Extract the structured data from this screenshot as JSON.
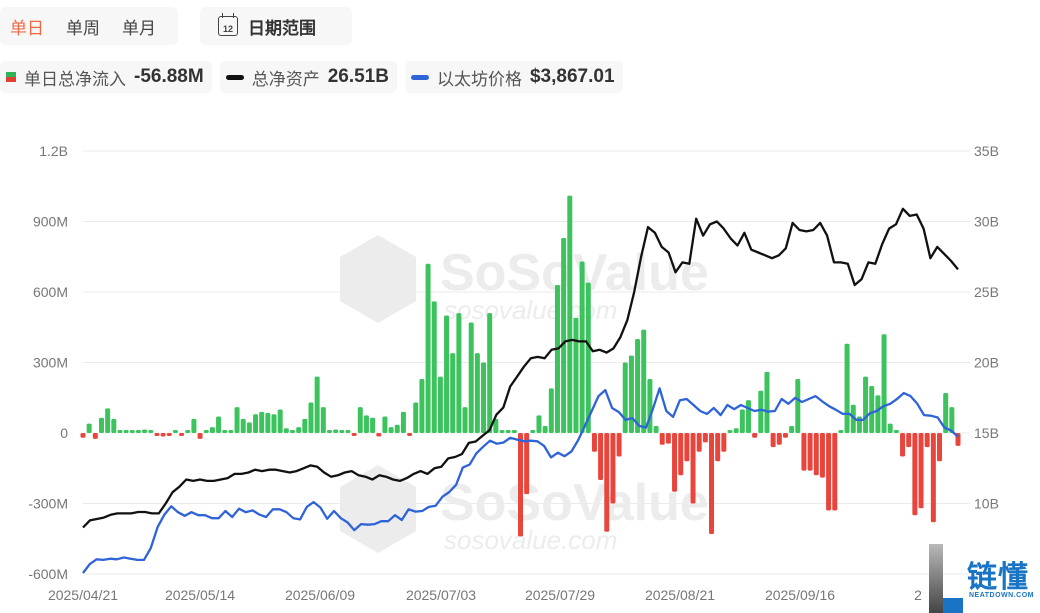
{
  "tabs": [
    {
      "label": "单日",
      "active": true
    },
    {
      "label": "单周",
      "active": false
    },
    {
      "label": "单月",
      "active": false
    }
  ],
  "date_range": {
    "icon": "calendar-icon",
    "icon_text": "12",
    "label": "日期范围"
  },
  "legend": [
    {
      "name": "单日总净流入",
      "value": "-56.88M",
      "swatch": "bar-swatch"
    },
    {
      "name": "总净资产",
      "value": "26.51B",
      "swatch": "line-swatch",
      "color": "#111111"
    },
    {
      "name": "以太坊价格",
      "value": "$3,867.01",
      "swatch": "line-swatch",
      "color": "#2f63d8"
    }
  ],
  "colors": {
    "inflow": "#3cc35e",
    "outflow": "#e8453c",
    "total_assets": "#111111",
    "eth_price": "#2f63d8",
    "grid": "#ebebeb",
    "active_tab": "#ee6a43"
  },
  "watermark": {
    "brand": "SoSoValue",
    "url": "sosovalue.com"
  },
  "logo": {
    "brand": "链懂",
    "sub": "NEATDOWN.COM"
  },
  "chart_data": {
    "type": "bar+line",
    "title": "",
    "x_tick_labels": [
      "2025/04/21",
      "2025/05/14",
      "2025/06/09",
      "2025/07/03",
      "2025/07/29",
      "2025/08/21",
      "2025/09/16",
      "2"
    ],
    "left_axis": {
      "label": "单日总净流入",
      "ticks": [
        "1.2B",
        "900M",
        "600M",
        "300M",
        "0",
        "-300M",
        "-600M"
      ],
      "range": [
        -600,
        1200
      ],
      "unit": "M"
    },
    "right_axis": {
      "label": "总净资产",
      "ticks": [
        "35B",
        "30B",
        "25B",
        "20B",
        "15B",
        "10B"
      ],
      "range": [
        8,
        35
      ],
      "unit": "B"
    },
    "grid": true,
    "legend_position": "top-left",
    "series": [
      {
        "name": "单日总净流入",
        "type": "bar",
        "unit": "M",
        "values": [
          -20,
          40,
          -25,
          65,
          105,
          60,
          5,
          0,
          5,
          0,
          15,
          0,
          -10,
          -15,
          -10,
          10,
          -5,
          10,
          60,
          -25,
          10,
          25,
          70,
          0,
          0,
          110,
          60,
          45,
          80,
          90,
          85,
          80,
          100,
          20,
          5,
          25,
          60,
          130,
          240,
          110,
          0,
          15,
          10,
          10,
          -5,
          110,
          75,
          65,
          -15,
          70,
          25,
          35,
          90,
          -5,
          130,
          230,
          720,
          560,
          240,
          500,
          340,
          510,
          110,
          470,
          340,
          300,
          510,
          60,
          0,
          5,
          0,
          -440,
          -260,
          0,
          75,
          30,
          190,
          630,
          830,
          1010,
          490,
          730,
          640,
          -80,
          -200,
          -420,
          -300,
          -100,
          300,
          330,
          400,
          440,
          230,
          30,
          -50,
          -45,
          -250,
          -180,
          -120,
          -300,
          -80,
          -40,
          -430,
          -120,
          -80,
          10,
          20,
          100,
          140,
          -20,
          180,
          260,
          -60,
          -50,
          -20,
          30,
          230,
          -160,
          -160,
          -180,
          -190,
          -330,
          -330,
          10,
          380,
          120,
          70,
          240,
          200,
          160,
          420,
          40,
          0,
          -100,
          -60,
          -350,
          -320,
          -60,
          -380,
          -120,
          170,
          110,
          -55
        ]
      },
      {
        "name": "总净资产",
        "type": "line",
        "unit": "B",
        "values": [
          8.3,
          8.8,
          8.9,
          9.0,
          9.2,
          9.3,
          9.3,
          9.3,
          9.4,
          9.4,
          9.3,
          9.3,
          10.0,
          10.8,
          11.2,
          11.7,
          11.6,
          11.7,
          11.6,
          11.6,
          11.7,
          11.8,
          12.1,
          12.1,
          12.2,
          12.4,
          12.3,
          12.4,
          12.4,
          12.3,
          12.2,
          12.3,
          12.5,
          12.7,
          12.6,
          12.2,
          11.9,
          12.0,
          12.2,
          12.3,
          12.0,
          11.9,
          11.7,
          12.0,
          11.9,
          11.7,
          11.6,
          11.8,
          12.1,
          12.3,
          12.1,
          12.5,
          12.6,
          13.2,
          13.3,
          13.5,
          14.3,
          14.4,
          14.8,
          15.2,
          16.3,
          16.8,
          18.3,
          19.0,
          19.7,
          20.3,
          20.4,
          20.3,
          20.9,
          21.0,
          21.5,
          21.6,
          21.5,
          21.5,
          20.8,
          20.9,
          20.7,
          21.0,
          21.8,
          23.0,
          25.0,
          27.5,
          29.6,
          29.2,
          28.2,
          27.8,
          26.4,
          27.1,
          27.0,
          30.2,
          29.0,
          29.8,
          30.0,
          29.5,
          28.8,
          28.3,
          29.2,
          28.0,
          27.8,
          27.6,
          27.4,
          27.6,
          28.1,
          29.9,
          29.4,
          29.3,
          29.4,
          29.9,
          29.0,
          27.1,
          27.1,
          27.0,
          25.5,
          25.9,
          27.1,
          27.0,
          28.4,
          29.5,
          29.8,
          30.9,
          30.4,
          30.5,
          29.5,
          27.4,
          28.2,
          27.7,
          27.2,
          26.6
        ]
      },
      {
        "name": "以太坊价格",
        "type": "line",
        "unit": "USD",
        "values": [
          1580,
          1730,
          1810,
          1800,
          1820,
          1810,
          1840,
          1820,
          1800,
          1800,
          2000,
          2350,
          2560,
          2700,
          2600,
          2540,
          2600,
          2550,
          2550,
          2500,
          2500,
          2620,
          2520,
          2660,
          2600,
          2630,
          2560,
          2520,
          2650,
          2650,
          2600,
          2500,
          2480,
          2690,
          2770,
          2680,
          2490,
          2620,
          2500,
          2430,
          2300,
          2400,
          2390,
          2400,
          2450,
          2450,
          2550,
          2470,
          2650,
          2610,
          2620,
          2690,
          2710,
          2860,
          2940,
          3060,
          3350,
          3400,
          3590,
          3700,
          3800,
          3750,
          3770,
          3850,
          3820,
          3790,
          3800,
          3790,
          3710,
          3520,
          3600,
          3540,
          3620,
          3810,
          4050,
          4300,
          4550,
          4650,
          4350,
          4280,
          4150,
          4180,
          4050,
          4020,
          4330,
          4680,
          4300,
          4200,
          4480,
          4500,
          4400,
          4300,
          4250,
          4350,
          4230,
          4400,
          4330,
          4400,
          4350,
          4300,
          4320,
          4290,
          4300,
          4500,
          4420,
          4520,
          4450,
          4500,
          4550,
          4460,
          4380,
          4320,
          4250,
          4250,
          4150,
          4150,
          4260,
          4300,
          4380,
          4420,
          4500,
          4600,
          4550,
          4420,
          4230,
          4220,
          4190,
          4020,
          3970,
          3867
        ]
      }
    ]
  }
}
